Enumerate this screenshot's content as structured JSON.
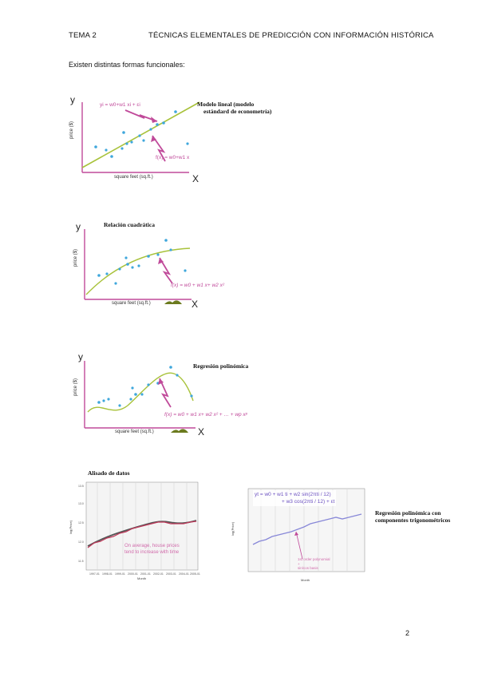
{
  "header": {
    "left": "TEMA 2",
    "center": "TÉCNICAS ELEMENTALES DE PREDICCIÓN CON INFORMACIÓN HISTÓRICA"
  },
  "intro": "Existen distintas formas funcionales:",
  "fig1": {
    "caption_line1": "Modelo lineal (modelo",
    "caption_line2": "estándard de econometría)",
    "y_axis": "y",
    "x_axis": "X",
    "ylabel": "price ($)",
    "xlabel": "square feet (sq.ft.)",
    "eq_top": "yi = w0+w1 xi + εi",
    "eq_bottom": "f(x) = w0+w1 x"
  },
  "fig2": {
    "caption": "Relación cuadrática",
    "y_axis": "y",
    "x_axis": "X",
    "ylabel": "price ($)",
    "xlabel": "square feet (sq.ft.)",
    "eq": "f(x) = w0 + w1 x+ w2 x²"
  },
  "fig3": {
    "caption": "Regresión polinómica",
    "y_axis": "y",
    "x_axis": "X",
    "ylabel": "price ($)",
    "xlabel": "square feet (sq.ft.)",
    "eq": "f(x) = w0 + w1 x+ w2 x² + … + wp xᵖ"
  },
  "fig4": {
    "caption": "Alisado de datos",
    "annotation_line1": "On average, house prices",
    "annotation_line2": "tend to increase with time",
    "ylabel": "log(Price)",
    "xlabel": "Month",
    "y_ticks": [
      "11.5",
      "12.0",
      "12.5",
      "13.0",
      "13.5"
    ],
    "x_ticks": [
      "1997-01",
      "1998-01",
      "1999-01",
      "2000-01",
      "2001-01",
      "2002-01",
      "2003-01",
      "2004-01",
      "2005-01"
    ]
  },
  "fig5": {
    "eq_line1": "yt = w0 + w1 ti + w2 sin(2πti / 12)",
    "eq_line2": "+ w3 cos(2πti / 12) + εt",
    "annotation_line1": "1st order polynomial",
    "annotation_line2": "+",
    "annotation_line3": "sin/cos basis",
    "ylabel": "log(Price)",
    "xlabel": "Month"
  },
  "fig5_caption": {
    "line1": "Regresión polinómica con",
    "line2": "componentes trigonométricos"
  },
  "page_number": "2",
  "colors": {
    "accent_pink": "#c04a9a",
    "fit_green": "#a8c23a",
    "dot_blue": "#3fa7dc",
    "trig_blue": "#8888d8",
    "smooth_red": "#c0385a"
  }
}
